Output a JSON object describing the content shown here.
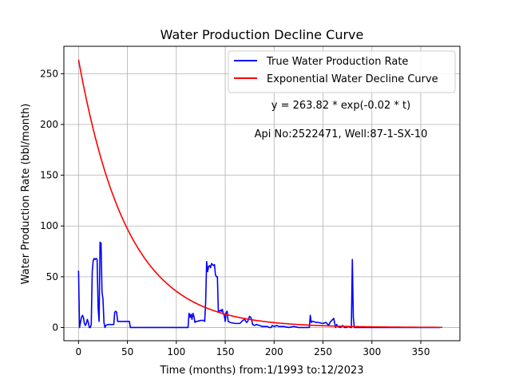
{
  "chart_data": {
    "type": "line",
    "title": "Water Production Decline Curve",
    "xlabel": "Time (months) from:1/1993 to:12/2023",
    "ylabel": "Water Production Rate (bbl/month)",
    "xlim": [
      -15,
      390
    ],
    "ylim": [
      -13,
      277
    ],
    "xticks": [
      0,
      50,
      100,
      150,
      200,
      250,
      300,
      350
    ],
    "yticks": [
      0,
      50,
      100,
      150,
      200,
      250
    ],
    "grid": true,
    "legend_position": "top-right",
    "annotations": [
      "y = 263.82 * exp(-0.02 * t)",
      "Api No:2522471, Well:87-1-SX-10"
    ],
    "series": [
      {
        "name": "True Water Production Rate",
        "color": "#0000ff",
        "x": [
          0,
          1,
          2,
          3,
          4,
          5,
          6,
          7,
          8,
          9,
          10,
          11,
          12,
          13,
          14,
          15,
          16,
          17,
          18,
          19,
          20,
          21,
          22,
          23,
          24,
          25,
          26,
          27,
          28,
          30,
          33,
          35,
          36,
          37,
          38,
          39,
          40,
          45,
          52,
          53,
          60,
          100,
          112,
          113,
          114,
          115,
          116,
          117,
          118,
          119,
          120,
          121,
          125,
          128,
          129,
          130,
          131,
          132,
          133,
          134,
          135,
          136,
          137,
          138,
          139,
          140,
          141,
          142,
          143,
          144,
          145,
          146,
          147,
          148,
          149,
          150,
          151,
          152,
          153,
          155,
          160,
          165,
          168,
          170,
          171,
          172,
          173,
          174,
          175,
          176,
          177,
          178,
          180,
          182,
          185,
          188,
          190,
          193,
          195,
          197,
          198,
          200,
          203,
          205,
          210,
          215,
          220,
          225,
          230,
          235,
          236,
          237,
          238,
          239,
          240,
          243,
          245,
          250,
          253,
          255,
          256,
          257,
          258,
          259,
          260,
          261,
          262,
          263,
          264,
          265,
          268,
          270,
          272,
          274,
          276,
          278,
          279,
          280,
          281,
          282,
          285,
          290,
          300,
          320,
          340,
          350,
          360,
          370
        ],
        "values": [
          56,
          0,
          5,
          10,
          12,
          10,
          4,
          2,
          4,
          8,
          5,
          0,
          0,
          3,
          55,
          66,
          68,
          67,
          68,
          67,
          20,
          6,
          84,
          83,
          35,
          28,
          5,
          0,
          2,
          3,
          3,
          3,
          3,
          15,
          16,
          15,
          6,
          6,
          6,
          0,
          0,
          0,
          0,
          14,
          10,
          13,
          8,
          14,
          11,
          5,
          6,
          6,
          7,
          7,
          6,
          25,
          65,
          55,
          60,
          61,
          59,
          63,
          62,
          61,
          62,
          52,
          50,
          50,
          15,
          16,
          17,
          16,
          18,
          14,
          12,
          6,
          15,
          16,
          6,
          5,
          4,
          4,
          7,
          8,
          6,
          5,
          6,
          9,
          11,
          10,
          8,
          3,
          2,
          3,
          2,
          1,
          1,
          1,
          0,
          0,
          2,
          1,
          2,
          1,
          1,
          0,
          1,
          0,
          0,
          0,
          0,
          12,
          5,
          6,
          6,
          5,
          5,
          4,
          5,
          3,
          2,
          5,
          6,
          7,
          8,
          9,
          4,
          0,
          3,
          1,
          0,
          2,
          0,
          0,
          1,
          0,
          0,
          67,
          10,
          0,
          0,
          0,
          0,
          0,
          0,
          0,
          0,
          0
        ]
      },
      {
        "name": "Exponential Water Decline Curve",
        "color": "#ff0000",
        "function": {
          "a": 263.82,
          "b": 0.02,
          "x_start": 0,
          "x_end": 372
        }
      }
    ]
  }
}
